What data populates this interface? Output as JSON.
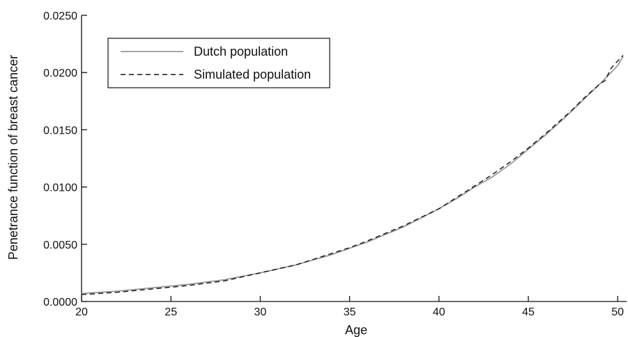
{
  "chart_data": {
    "type": "line",
    "title": "",
    "xlabel": "Age",
    "ylabel": "Penetrance function of breast cancer",
    "xlim": [
      20,
      50.5
    ],
    "ylim": [
      0,
      0.025
    ],
    "xticks": [
      20,
      25,
      30,
      35,
      40,
      45,
      50
    ],
    "xtick_labels": [
      "20",
      "25",
      "30",
      "35",
      "40",
      "45",
      "50"
    ],
    "yticks": [
      0,
      0.005,
      0.01,
      0.015,
      0.02,
      0.025
    ],
    "ytick_labels": [
      "0.0000",
      "0.0050",
      "0.0100",
      "0.0150",
      "0.0200",
      "0.0250"
    ],
    "grid": false,
    "legend_position": "top-left",
    "series": [
      {
        "name": "Dutch population",
        "style": "solid",
        "color": "#999999",
        "points": [
          [
            20,
            0.0007
          ],
          [
            22,
            0.0009
          ],
          [
            24,
            0.0012
          ],
          [
            26,
            0.0015
          ],
          [
            28,
            0.0019
          ],
          [
            30,
            0.0025
          ],
          [
            32,
            0.0032
          ],
          [
            34,
            0.0041
          ],
          [
            36,
            0.0052
          ],
          [
            38,
            0.0065
          ],
          [
            40,
            0.0081
          ],
          [
            41,
            0.009
          ],
          [
            42,
            0.01
          ],
          [
            43,
            0.0109
          ],
          [
            44,
            0.012
          ],
          [
            45,
            0.0133
          ],
          [
            46,
            0.0146
          ],
          [
            47,
            0.016
          ],
          [
            48,
            0.0175
          ],
          [
            49,
            0.019
          ],
          [
            50,
            0.0206
          ],
          [
            50.3,
            0.0214
          ]
        ]
      },
      {
        "name": "Simulated population",
        "style": "dashed",
        "color": "#111111",
        "points": [
          [
            20,
            0.0006
          ],
          [
            22,
            0.0008
          ],
          [
            24,
            0.0011
          ],
          [
            26,
            0.0014
          ],
          [
            28,
            0.0018
          ],
          [
            30,
            0.0025
          ],
          [
            32,
            0.0032
          ],
          [
            34,
            0.0042
          ],
          [
            35,
            0.0047
          ],
          [
            36,
            0.0053
          ],
          [
            38,
            0.0066
          ],
          [
            40,
            0.0081
          ],
          [
            41,
            0.0091
          ],
          [
            42,
            0.0101
          ],
          [
            43,
            0.0111
          ],
          [
            44,
            0.0122
          ],
          [
            45,
            0.0134
          ],
          [
            46,
            0.0147
          ],
          [
            47,
            0.0161
          ],
          [
            47.5,
            0.0168
          ],
          [
            48,
            0.0176
          ],
          [
            48.5,
            0.0183
          ],
          [
            49,
            0.019
          ],
          [
            49.3,
            0.0193
          ],
          [
            49.6,
            0.0203
          ],
          [
            49.8,
            0.0207
          ],
          [
            50,
            0.021
          ],
          [
            50.3,
            0.0215
          ]
        ]
      }
    ]
  }
}
